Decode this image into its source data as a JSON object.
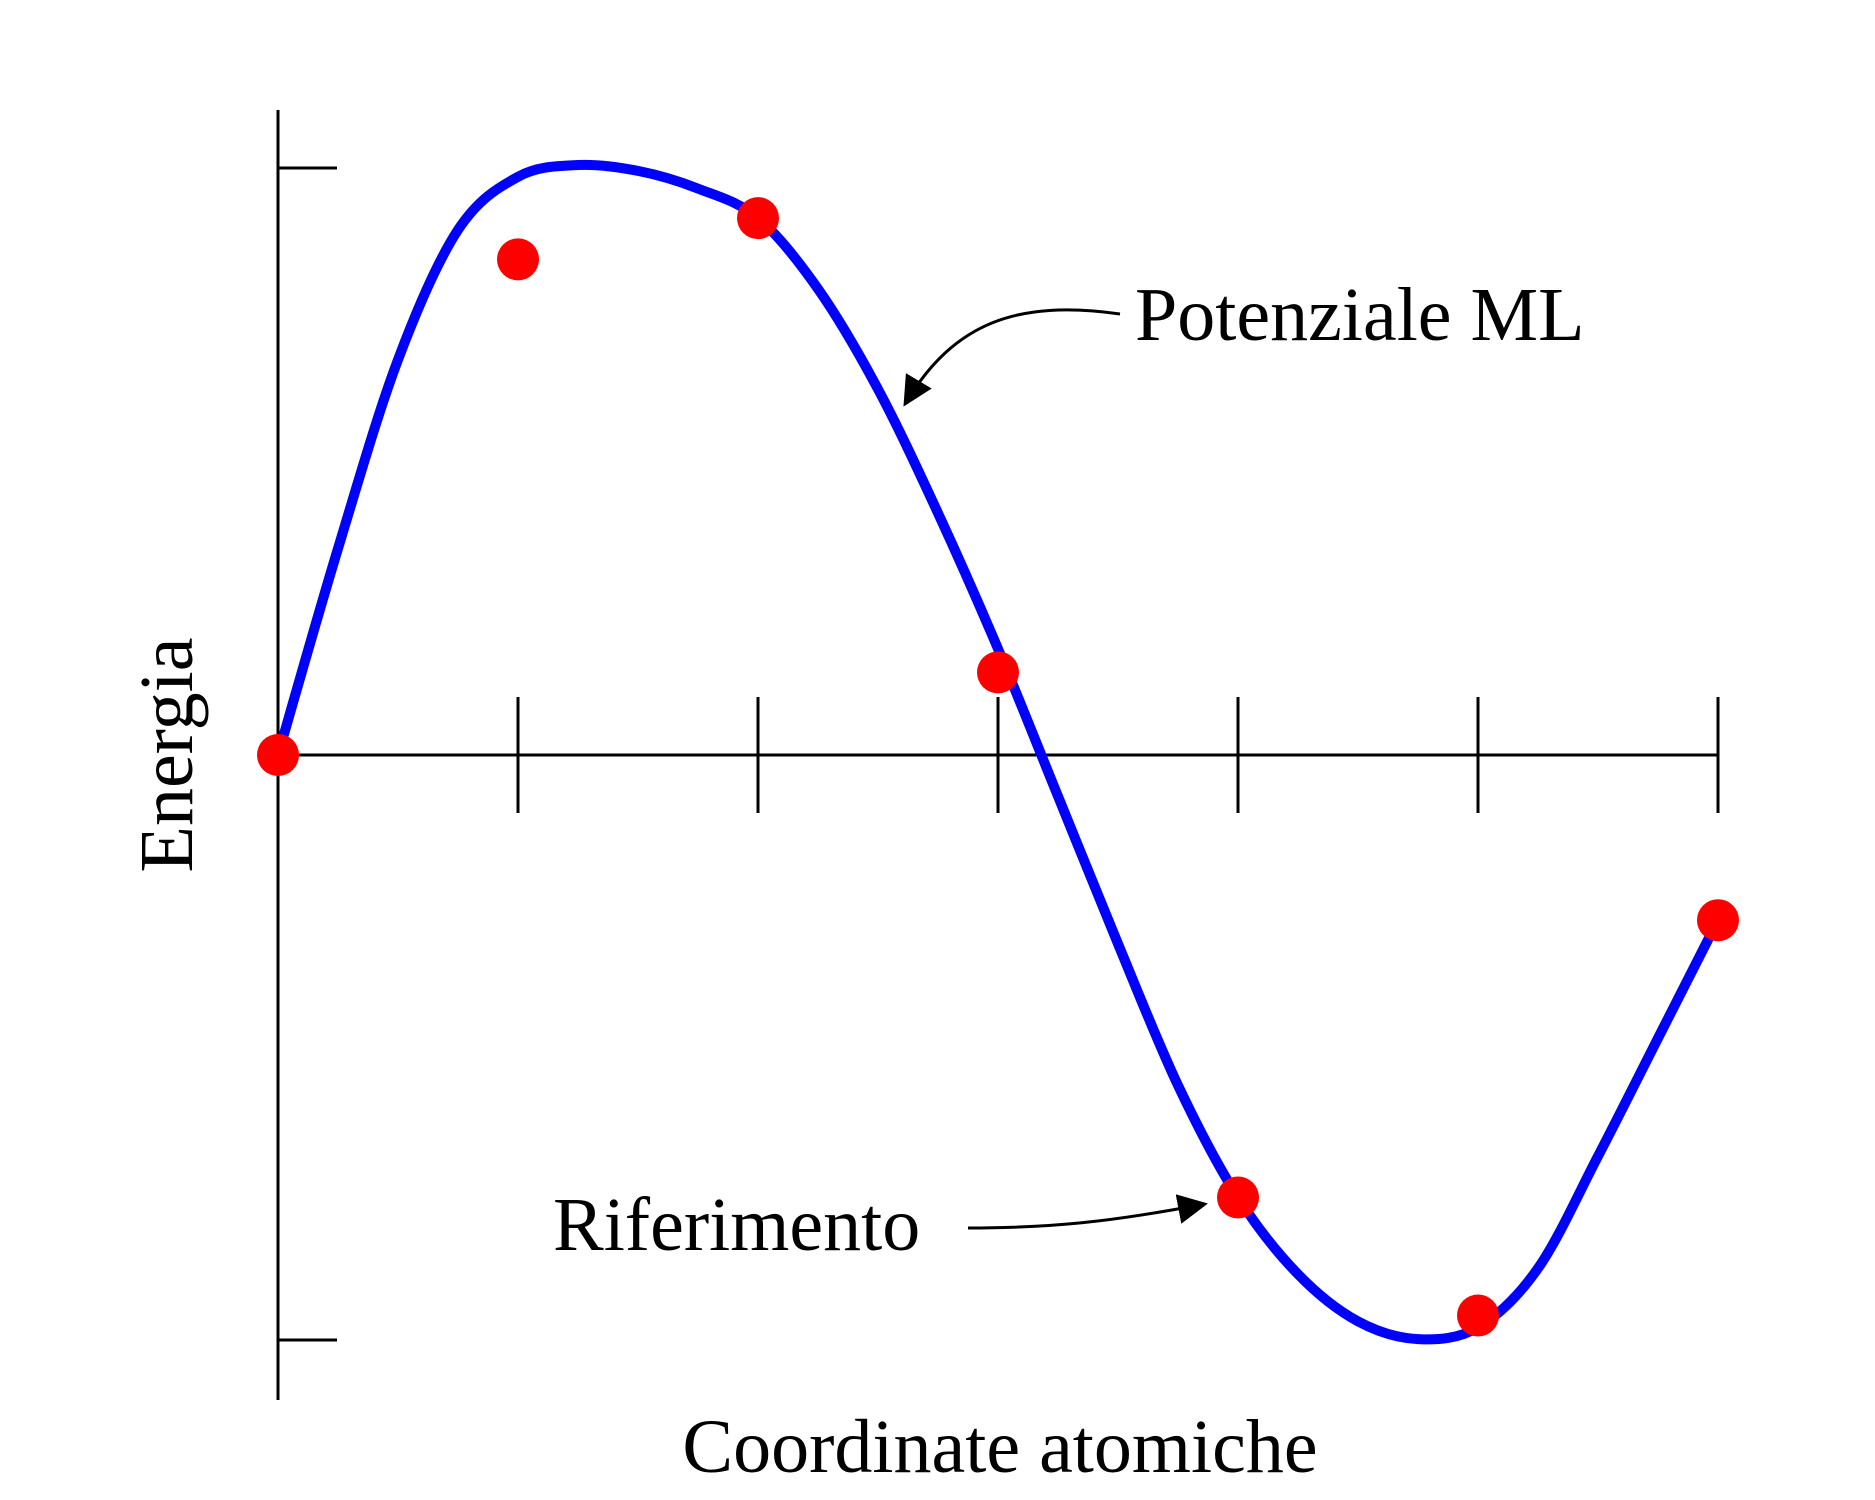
{
  "chart_data": {
    "type": "line",
    "title": "",
    "xlabel": "Coordinate atomiche",
    "ylabel": "Energia",
    "xlim": [
      0,
      6
    ],
    "ylim": [
      -1,
      1
    ],
    "grid": false,
    "curve": {
      "name": "Potenziale ML",
      "color": "#0000ff",
      "x": [
        0,
        0.25,
        0.5,
        0.75,
        1,
        1.25,
        1.5,
        1.75,
        2,
        2.25,
        2.5,
        2.75,
        3,
        3.25,
        3.5,
        3.75,
        4,
        4.25,
        4.5,
        4.75,
        5,
        5.25,
        5.5,
        5.75,
        6
      ],
      "y": [
        0,
        0.35,
        0.67,
        0.89,
        0.98,
        1.0,
        0.99,
        0.96,
        0.91,
        0.79,
        0.62,
        0.41,
        0.18,
        -0.07,
        -0.32,
        -0.56,
        -0.75,
        -0.88,
        -0.96,
        -0.99,
        -0.97,
        -0.87,
        -0.68,
        -0.48,
        -0.28
      ]
    },
    "points": {
      "name": "Riferimento",
      "color": "#ff0000",
      "x": [
        0,
        1,
        2,
        3,
        4,
        5,
        6
      ],
      "y": [
        0,
        0.84,
        0.91,
        0.14,
        -0.75,
        -0.95,
        -0.28
      ]
    },
    "annotations": [
      {
        "text": "Potenziale ML",
        "target": "curve"
      },
      {
        "text": "Riferimento",
        "target": "points"
      }
    ]
  }
}
